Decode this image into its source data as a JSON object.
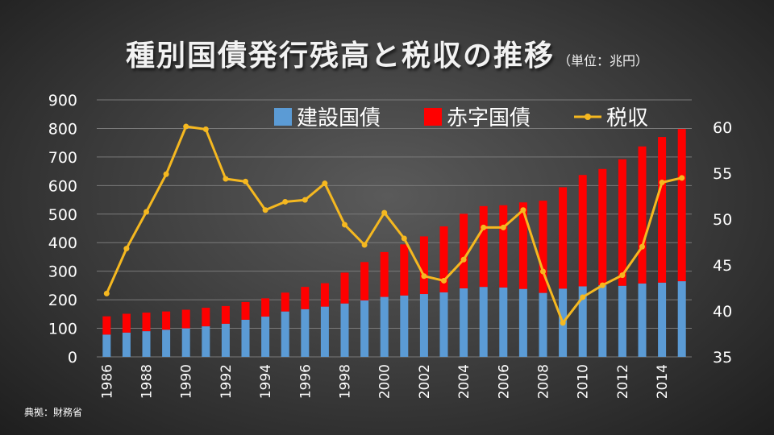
{
  "title": {
    "main": "種別国債発行残高と税収の推移",
    "unit": "（単位：兆円）"
  },
  "source": "典拠：財務省",
  "colors": {
    "construction": "#5b9bd5",
    "deficit": "#ff0000",
    "tax": "#f5b820"
  },
  "chart_data": {
    "type": "bar",
    "stacked": true,
    "title": "種別国債発行残高と税収の推移",
    "unit": "（単位：兆円）",
    "years": [
      1986,
      1987,
      1988,
      1989,
      1990,
      1991,
      1992,
      1993,
      1994,
      1995,
      1996,
      1997,
      1998,
      1999,
      2000,
      2001,
      2002,
      2003,
      2004,
      2005,
      2006,
      2007,
      2008,
      2009,
      2010,
      2011,
      2012,
      2013,
      2014,
      2015
    ],
    "x_tick_labels": [
      "1986",
      "1988",
      "1990",
      "1992",
      "1994",
      "1996",
      "1998",
      "2000",
      "2002",
      "2004",
      "2006",
      "2008",
      "2010",
      "2012",
      "2014"
    ],
    "y_left": {
      "lim": [
        0,
        900
      ],
      "ticks": [
        0,
        100,
        200,
        300,
        400,
        500,
        600,
        700,
        800,
        900
      ]
    },
    "y_right": {
      "lim": [
        35,
        63
      ],
      "ticks": [
        35,
        40,
        45,
        50,
        55,
        60
      ]
    },
    "legend": [
      "建設国債",
      "赤字国債",
      "税収"
    ],
    "legend_placement": "top",
    "series": [
      {
        "name": "建設国債",
        "axis": "left",
        "kind": "bar",
        "values": [
          78,
          85,
          90,
          95,
          100,
          107,
          116,
          130,
          141,
          159,
          167,
          176,
          187,
          198,
          210,
          215,
          220,
          226,
          240,
          245,
          243,
          238,
          224,
          239,
          247,
          251,
          249,
          257,
          260,
          265
        ]
      },
      {
        "name": "赤字国債",
        "axis": "left",
        "kind": "bar",
        "values": [
          64,
          66,
          65,
          64,
          65,
          65,
          62,
          62,
          64,
          66,
          78,
          82,
          108,
          134,
          157,
          179,
          202,
          231,
          261,
          283,
          288,
          303,
          323,
          355,
          390,
          407,
          443,
          480,
          510,
          533
        ]
      },
      {
        "name": "税収",
        "axis": "right",
        "kind": "line",
        "values": [
          41.9,
          46.8,
          50.8,
          54.9,
          60.1,
          59.8,
          54.4,
          54.1,
          51.0,
          51.9,
          52.1,
          53.9,
          49.4,
          47.2,
          50.7,
          47.9,
          43.8,
          43.3,
          45.6,
          49.1,
          49.1,
          51.0,
          44.3,
          38.7,
          41.5,
          42.8,
          43.9,
          47.0,
          54.0,
          54.5
        ]
      }
    ]
  }
}
